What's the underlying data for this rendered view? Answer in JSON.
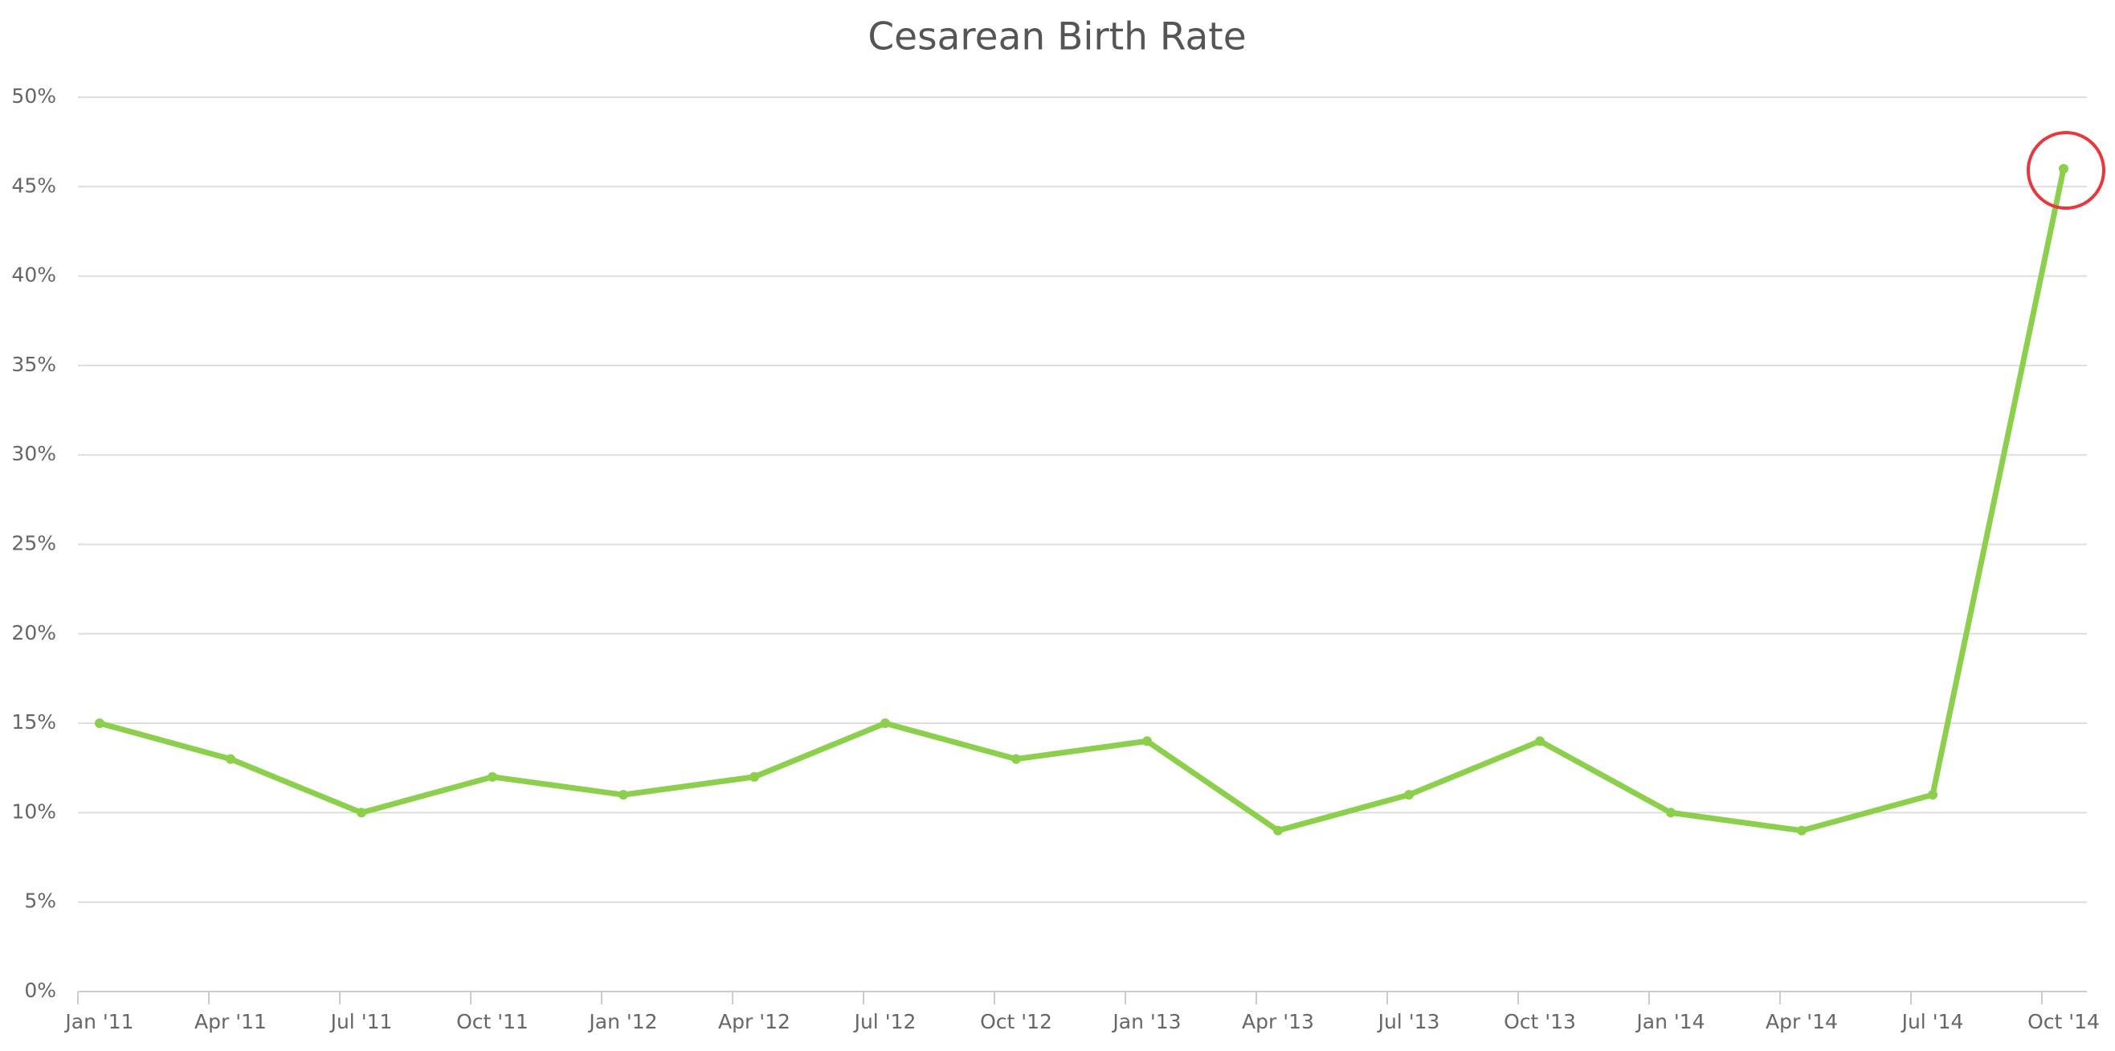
{
  "chart_data": {
    "type": "line",
    "title": "Cesarean Birth Rate",
    "categories": [
      "Jan '11",
      "Apr '11",
      "Jul '11",
      "Oct '11",
      "Jan '12",
      "Apr '12",
      "Jul '12",
      "Oct '12",
      "Jan '13",
      "Apr '13",
      "Jul '13",
      "Oct '13",
      "Jan '14",
      "Apr '14",
      "Jul '14",
      "Oct '14"
    ],
    "values": [
      15,
      13,
      10,
      12,
      11,
      12,
      15,
      13,
      14,
      9,
      11,
      14,
      10,
      9,
      11,
      46
    ],
    "color": "#8bcf4c",
    "ylim": [
      0,
      50
    ],
    "yticks": [
      {
        "value": 0,
        "label": "0%"
      },
      {
        "value": 5,
        "label": "5%"
      },
      {
        "value": 10,
        "label": "10%"
      },
      {
        "value": 15,
        "label": "15%"
      },
      {
        "value": 20,
        "label": "20%"
      },
      {
        "value": 25,
        "label": "25%"
      },
      {
        "value": 30,
        "label": "30%"
      },
      {
        "value": 35,
        "label": "35%"
      },
      {
        "value": 40,
        "label": "40%"
      },
      {
        "value": 45,
        "label": "45%"
      },
      {
        "value": 50,
        "label": "50%"
      }
    ],
    "grid": true
  }
}
